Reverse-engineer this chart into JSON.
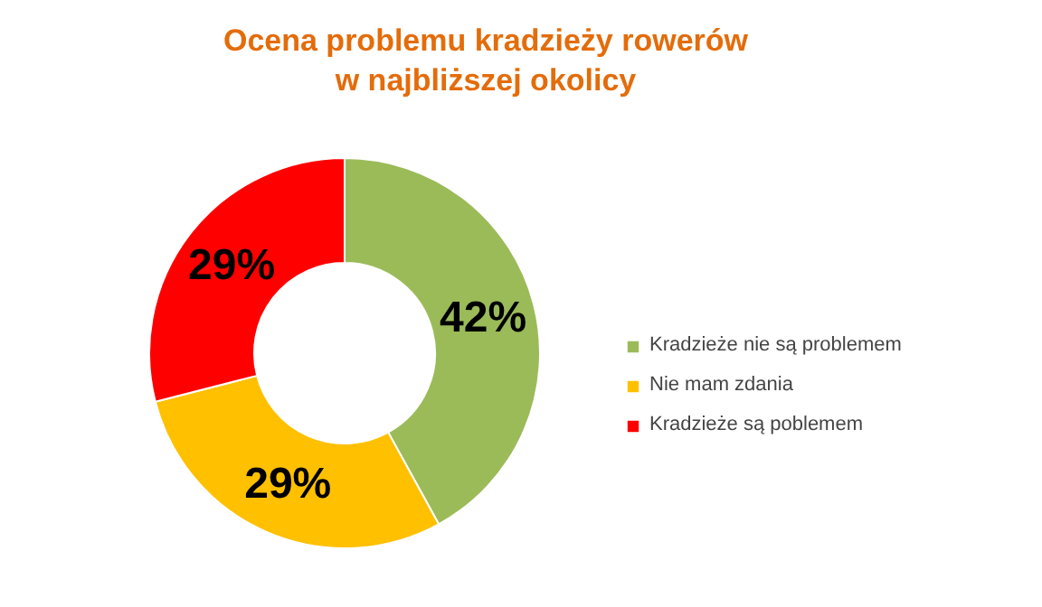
{
  "chart_data": {
    "type": "donut",
    "title": "Ocena problemu kradzieży rowerów\nw najbliższej okolicy",
    "categories": [
      "Kradzieże nie są problemem",
      "Nie mam zdania",
      "Kradzieże są poblemem"
    ],
    "values": [
      42,
      29,
      29
    ],
    "colors": [
      "#9bbb59",
      "#ffc000",
      "#ff0000"
    ],
    "value_labels": [
      "42%",
      "29%",
      "29%"
    ],
    "legend": "right"
  }
}
